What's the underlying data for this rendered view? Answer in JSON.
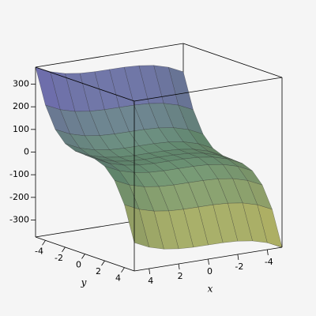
{
  "chart_data": {
    "type": "surface",
    "x": [
      -5,
      -4,
      -3,
      -2,
      -1,
      0,
      1,
      2,
      3,
      4,
      5
    ],
    "y": [
      -5,
      -4,
      -3,
      -2,
      -1,
      0,
      1,
      2,
      3,
      4,
      5
    ],
    "z": [
      [
        250,
        280.5,
        299,
        308.5,
        312,
        312.5,
        313,
        316.5,
        326,
        344.5,
        375
      ],
      [
        97.5,
        128,
        146.5,
        156,
        159.5,
        160,
        160.5,
        164,
        173.5,
        192,
        222.5
      ],
      [
        5,
        35.5,
        54,
        63.5,
        67,
        67.5,
        68,
        71.5,
        81,
        99.5,
        130
      ],
      [
        -42.5,
        -12,
        6.5,
        16,
        19.5,
        20,
        20.5,
        24,
        33.5,
        52,
        82.5
      ],
      [
        -60,
        -29.5,
        -11,
        -1.5,
        2,
        2.5,
        3,
        6.5,
        16,
        34.5,
        65
      ],
      [
        -62.5,
        -32,
        -13.5,
        -4,
        -0.5,
        0,
        0.5,
        4,
        13.5,
        32,
        62.5
      ],
      [
        -65,
        -34.5,
        -16,
        -6.5,
        -3,
        -2.5,
        -2,
        1.5,
        11,
        29.5,
        60
      ],
      [
        -82.5,
        -52,
        -33.5,
        -24,
        -20.5,
        -20,
        -19.5,
        -16,
        -6.5,
        12,
        42.5
      ],
      [
        -130,
        -99.5,
        -81,
        -71.5,
        -68,
        -67.5,
        -67,
        -63.5,
        -54,
        -35.5,
        -5
      ],
      [
        -222.5,
        -192,
        -173.5,
        -164,
        -160.5,
        -160,
        -159.5,
        -156,
        -146.5,
        -128,
        -97.5
      ],
      [
        -375,
        -344.5,
        -326,
        -316.5,
        -313,
        -312.5,
        -312,
        -308.5,
        -299,
        -280.5,
        -250
      ]
    ],
    "xlim": [
      -5,
      5
    ],
    "ylim": [
      -5,
      5
    ],
    "zlim": [
      -375,
      375
    ],
    "xticks": [
      -4,
      -2,
      0,
      2,
      4
    ],
    "yticks": [
      -4,
      -2,
      0,
      2,
      4
    ],
    "zticks": [
      -300,
      -200,
      -100,
      0,
      100,
      200,
      300
    ],
    "xlabel": "x",
    "ylabel": "y",
    "colorscale": [
      "#eee276",
      "#6f9a7c",
      "#8a7ce6"
    ],
    "box": true
  }
}
